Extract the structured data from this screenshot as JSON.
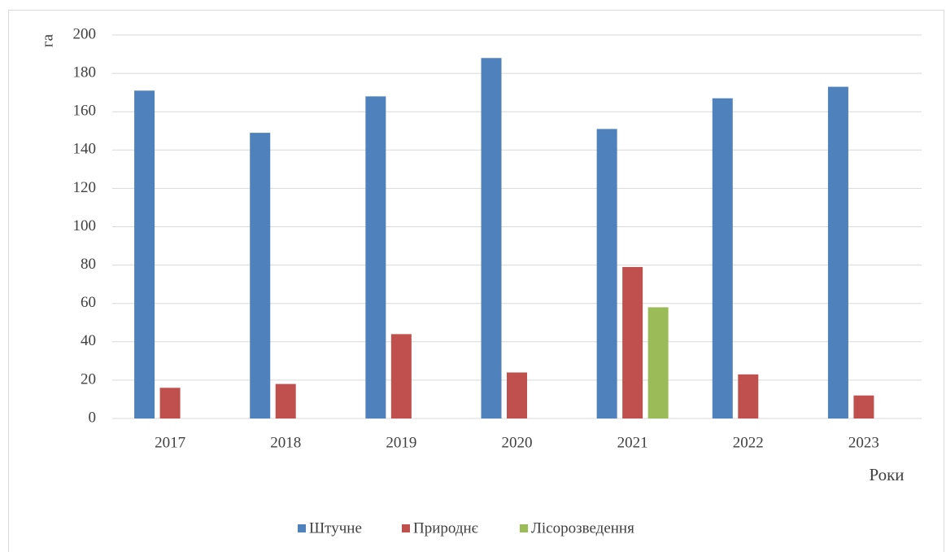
{
  "chart_data": {
    "type": "bar",
    "y_label": "га",
    "x_label": "Роки",
    "categories": [
      "2017",
      "2018",
      "2019",
      "2020",
      "2021",
      "2022",
      "2023"
    ],
    "series": [
      {
        "name": "Штучне",
        "color": "#4f81bd",
        "values": [
          171,
          149,
          168,
          188,
          151,
          167,
          173
        ]
      },
      {
        "name": "Природнє",
        "color": "#c0504d",
        "values": [
          16,
          18,
          44,
          24,
          79,
          23,
          12
        ]
      },
      {
        "name": "Лісорозведення",
        "color": "#9bbb59",
        "values": [
          null,
          null,
          null,
          null,
          58,
          null,
          null
        ]
      }
    ],
    "ylim": [
      0,
      200
    ],
    "yticks": [
      0,
      20,
      40,
      60,
      80,
      100,
      120,
      140,
      160,
      180,
      200
    ],
    "grid": true,
    "legend": "bottom"
  }
}
